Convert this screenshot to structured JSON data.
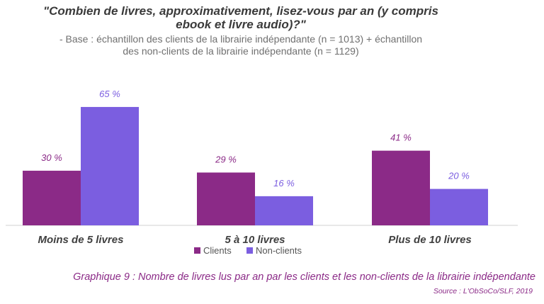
{
  "header": {
    "title_line1": "\"Combien de livres, approximativement, lisez-vous par an (y compris",
    "title_line2": "ebook et livre audio)?\"",
    "subtitle_line1": "- Base : échantillon des clients de la librairie indépendante (n = 1013) + échantillon",
    "subtitle_line2": "des non-clients de la librairie indépendante (n = 1129)"
  },
  "chart_data": {
    "type": "bar",
    "categories": [
      "Moins de 5 livres",
      "5 à 10 livres",
      "Plus de 10 livres"
    ],
    "series": [
      {
        "name": "Clients",
        "values": [
          30,
          29,
          41
        ],
        "labels": [
          "30 %",
          "29 %",
          "41 %"
        ],
        "color": "#8b2a87"
      },
      {
        "name": "Non-clients",
        "values": [
          65,
          16,
          20
        ],
        "labels": [
          "65 %",
          "16 %",
          "20 %"
        ],
        "color": "#7b5ee0"
      }
    ],
    "ylim": [
      0,
      70
    ],
    "grid": false,
    "legend_position": "bottom-center"
  },
  "footer": {
    "caption": "Graphique 9 : Nombre de livres lus par an par les clients et les non-clients de la librairie indépendante",
    "source": "Source : L'ObSoCo/SLF, 2019"
  }
}
